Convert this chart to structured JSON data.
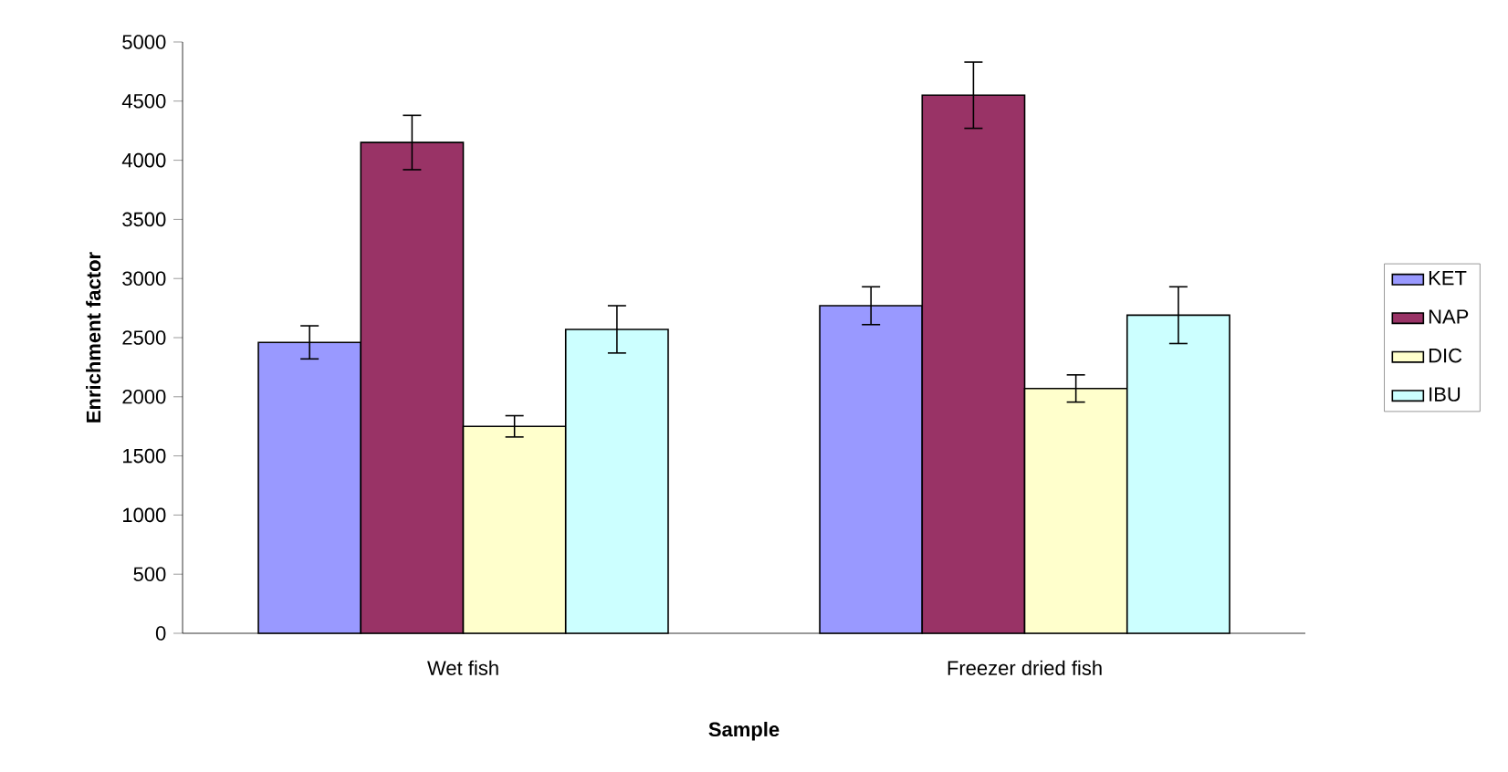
{
  "chart_data": {
    "type": "bar",
    "xlabel": "Sample",
    "ylabel": "Enrichment factor",
    "categories": [
      "Wet fish",
      "Freezer dried fish"
    ],
    "series": [
      {
        "name": "KET",
        "color": "#9999ff",
        "values": [
          2460,
          2770
        ],
        "errors": [
          140,
          160
        ]
      },
      {
        "name": "NAP",
        "color": "#993366",
        "values": [
          4150,
          4550
        ],
        "errors": [
          230,
          280
        ]
      },
      {
        "name": "DIC",
        "color": "#ffffcc",
        "values": [
          1750,
          2070
        ],
        "errors": [
          90,
          115
        ]
      },
      {
        "name": "IBU",
        "color": "#ccffff",
        "values": [
          2570,
          2690
        ],
        "errors": [
          200,
          240
        ]
      }
    ],
    "ylim": [
      0,
      5000
    ],
    "yticks": [
      0,
      500,
      1000,
      1500,
      2000,
      2500,
      3000,
      3500,
      4000,
      4500,
      5000
    ],
    "legend": "right"
  }
}
